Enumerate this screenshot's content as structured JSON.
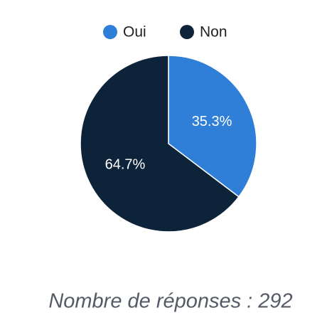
{
  "chart_data": {
    "type": "pie",
    "categories": [
      "Oui",
      "Non"
    ],
    "values": [
      35.3,
      64.7
    ],
    "value_labels": [
      "35.3%",
      "64.7%"
    ],
    "colors": [
      "#2f7ed8",
      "#0d233a"
    ],
    "legend": "top",
    "note": "Nombre de réponses : 292"
  }
}
